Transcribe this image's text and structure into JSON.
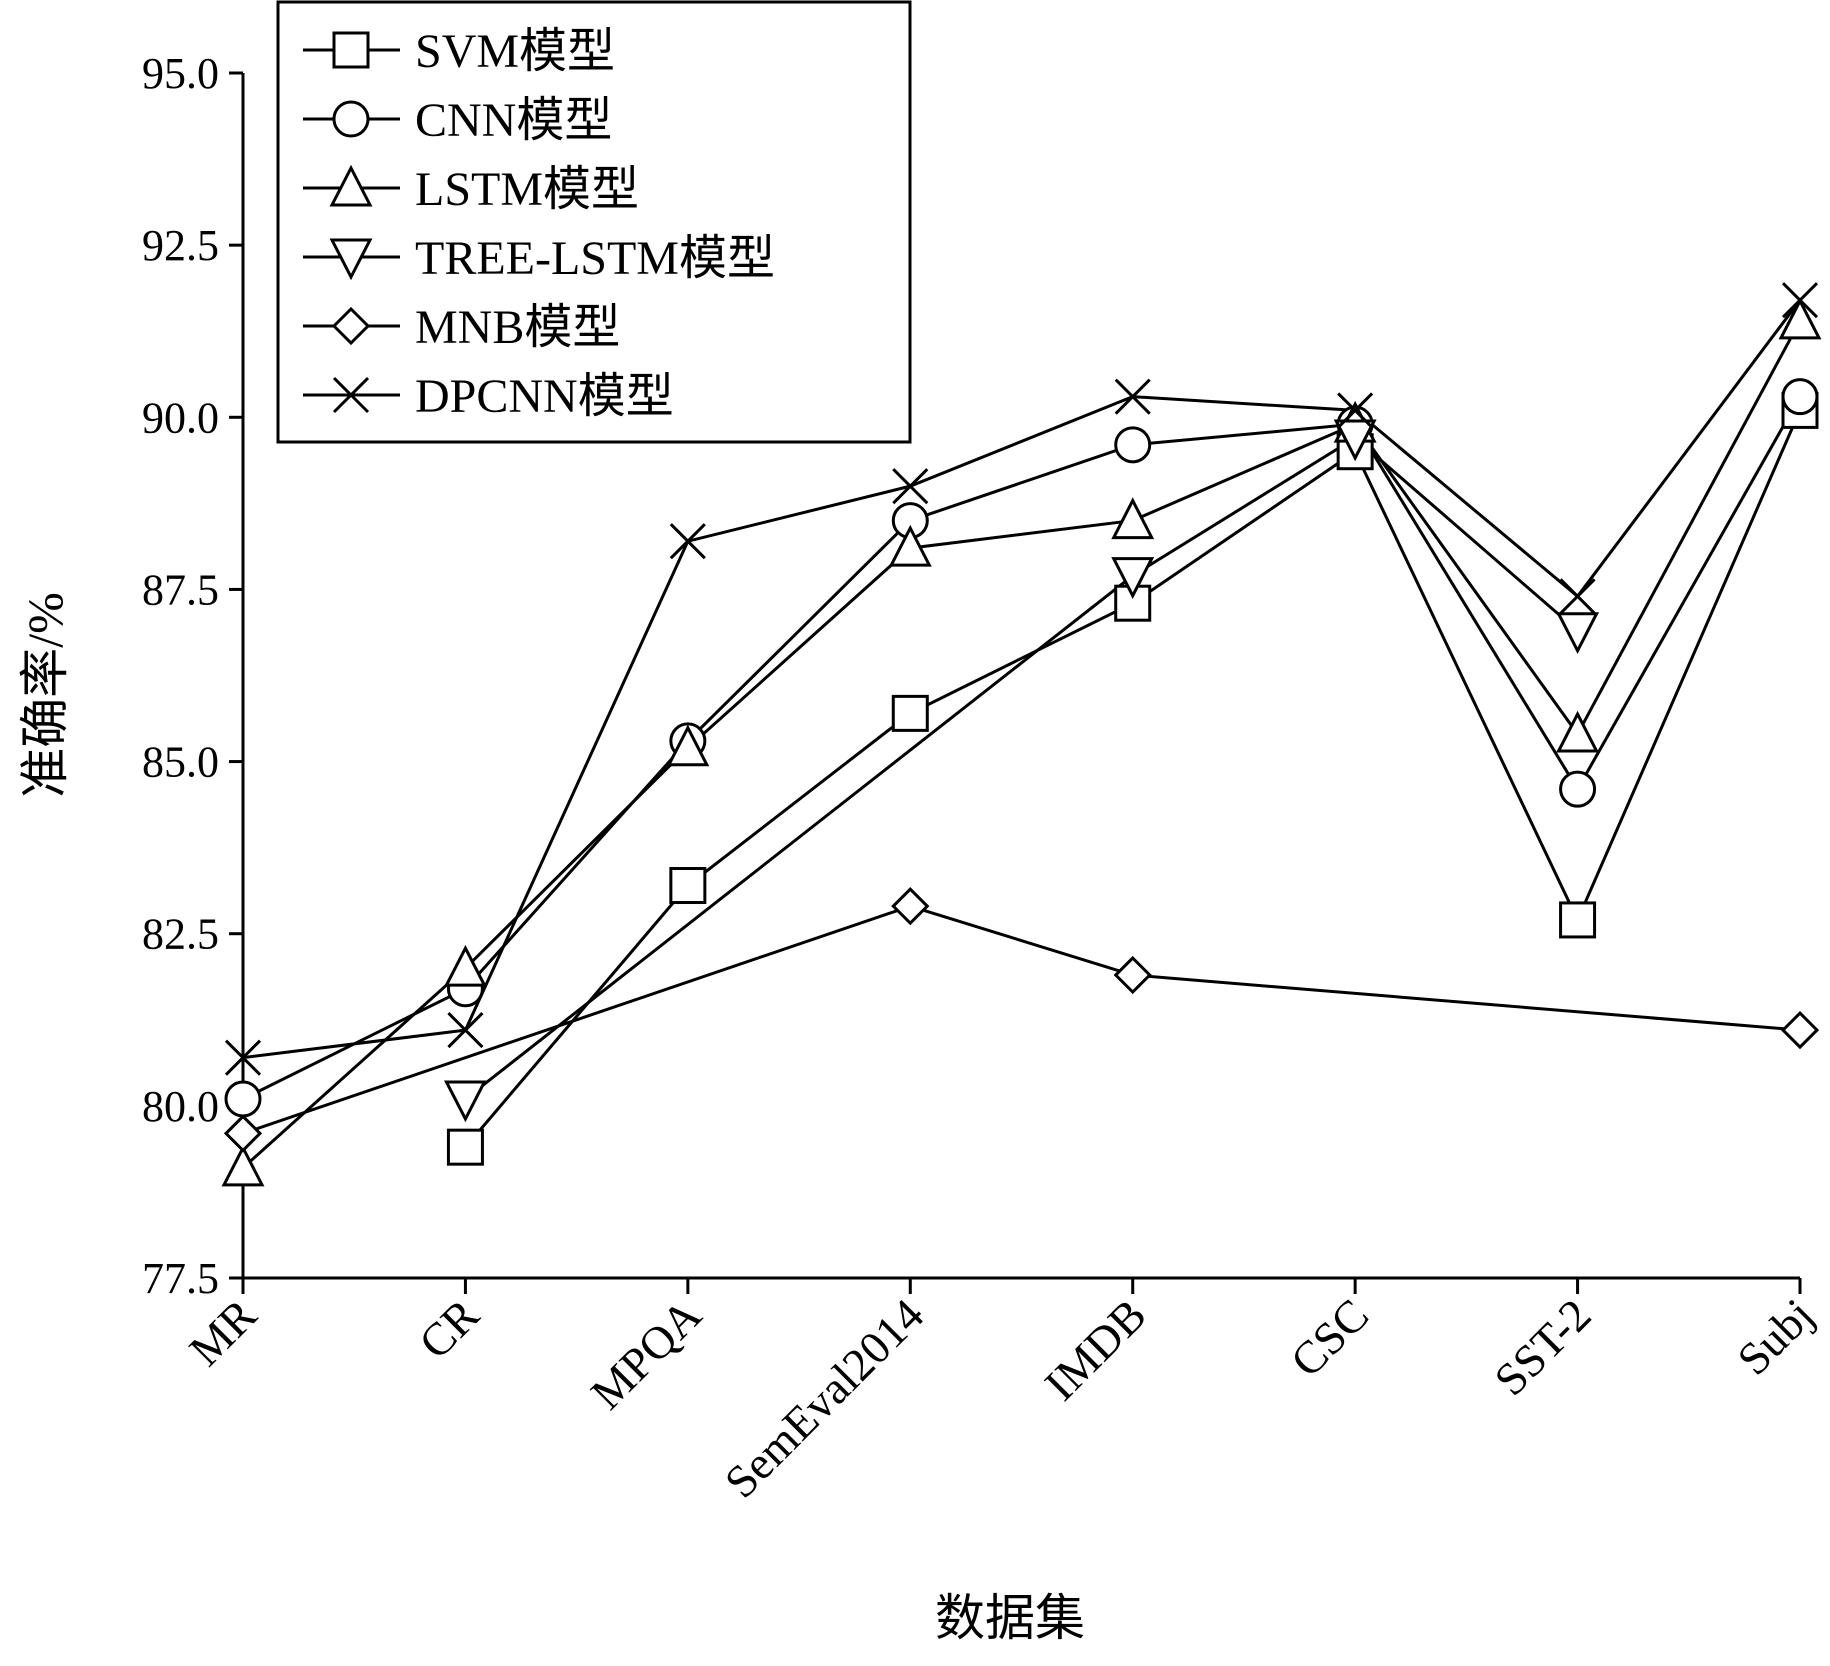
{
  "chart_data": {
    "type": "line",
    "xlabel": "数据集",
    "ylabel": "准确率/%",
    "ylim": [
      77.5,
      95.0
    ],
    "yticks": [
      "95.0",
      "92.5",
      "90.0",
      "87.5",
      "85.0",
      "82.5",
      "80.0",
      "77.5"
    ],
    "categories": [
      "MR",
      "CR",
      "MPQA",
      "SemEval2014",
      "IMDB",
      "CSC",
      "SST-2",
      "Subj"
    ],
    "grid": false,
    "legend_position": "top-left",
    "series": [
      {
        "name": "SVM模型",
        "marker": "square",
        "values": [
          null,
          79.4,
          83.2,
          85.7,
          87.3,
          89.5,
          82.7,
          90.1
        ]
      },
      {
        "name": "CNN模型",
        "marker": "circle",
        "values": [
          80.1,
          81.7,
          85.3,
          88.5,
          89.6,
          89.9,
          84.6,
          90.3
        ]
      },
      {
        "name": "LSTM模型",
        "marker": "triangle-up",
        "values": [
          79.1,
          82.0,
          85.2,
          88.1,
          88.5,
          89.9,
          85.4,
          91.4
        ]
      },
      {
        "name": "TREE-LSTM模型",
        "marker": "triangle-down",
        "values": [
          null,
          80.1,
          null,
          null,
          87.7,
          89.7,
          86.9,
          null
        ]
      },
      {
        "name": "MNB模型",
        "marker": "diamond",
        "values": [
          79.6,
          null,
          null,
          82.9,
          81.9,
          null,
          null,
          81.1
        ]
      },
      {
        "name": "DPCNN模型",
        "marker": "x",
        "values": [
          80.7,
          81.1,
          88.2,
          89.0,
          90.3,
          90.1,
          87.4,
          91.7
        ]
      }
    ]
  }
}
